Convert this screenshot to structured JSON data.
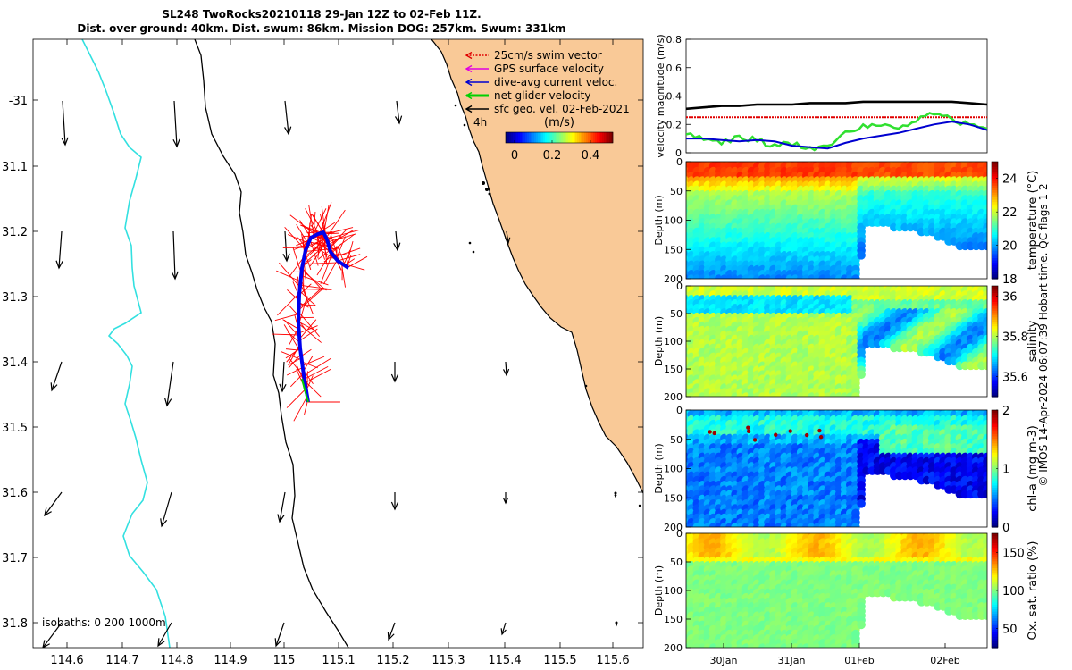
{
  "title": {
    "line1": "SL248 TwoRocks20210118 29-Jan 12Z to 02-Feb 11Z.",
    "line2": "Dist. over ground: 40km. Dist. swum: 86km. Mission DOG: 257km. Swum: 331km"
  },
  "map": {
    "x_ticks": [
      "114.6",
      "114.7",
      "114.8",
      "114.9",
      "115",
      "115.1",
      "115.2",
      "115.3",
      "115.4",
      "115.5",
      "115.6"
    ],
    "y_ticks": [
      "-31",
      "31.1",
      "31.2",
      "31.3",
      "31.4",
      "31.5",
      "31.6",
      "31.7",
      "31.8"
    ],
    "isobaths_label": "isobaths: 0   200  1000m",
    "legend": [
      {
        "label": "25cm/s swim vector",
        "color": "#e00000"
      },
      {
        "label": "GPS surface velocity",
        "color": "#e000e0"
      },
      {
        "label": "dive-avg current veloc.",
        "color": "#0000d0"
      },
      {
        "label": "net glider velocity",
        "color": "#00d000"
      },
      {
        "label": "sfc geo. vel. 02-Feb-2021",
        "color": "#000000"
      }
    ],
    "interval_label": "4h",
    "colorbar_unit": "(m/s)",
    "colorbar_ticks": [
      "0",
      "0.2",
      "0.4"
    ],
    "land_color": "#f9c997",
    "isobath_200_color": "#000000",
    "isobath_1000_color": "#33e0e0"
  },
  "chart_data": [
    {
      "type": "line",
      "title": "",
      "ylabel": "velocity magnitude (m/s)",
      "ylim": [
        0,
        0.8
      ],
      "yticks": [
        "0",
        "0.2",
        "0.4",
        "0.6",
        "0.8"
      ],
      "series": [
        {
          "name": "sfc geo. vel.",
          "color": "#000000",
          "values": [
            0.31,
            0.32,
            0.33,
            0.33,
            0.34,
            0.34,
            0.34,
            0.35,
            0.35,
            0.35,
            0.36,
            0.36,
            0.36,
            0.36,
            0.36,
            0.36,
            0.35,
            0.34
          ]
        },
        {
          "name": "25cm/s swim vector",
          "color": "#e00000",
          "values": [
            0.25,
            0.25,
            0.25,
            0.25,
            0.25,
            0.25,
            0.25,
            0.25,
            0.25,
            0.25,
            0.25,
            0.25,
            0.25,
            0.25,
            0.25,
            0.25,
            0.25,
            0.25
          ]
        },
        {
          "name": "net glider velocity",
          "color": "#30e030",
          "values": [
            0.13,
            0.09,
            0.06,
            0.12,
            0.08,
            0.06,
            0.05,
            0.04,
            0.05,
            0.15,
            0.2,
            0.19,
            0.17,
            0.22,
            0.27,
            0.24,
            0.2,
            0.17
          ]
        },
        {
          "name": "dive-avg current veloc.",
          "color": "#0000d0",
          "values": [
            0.1,
            0.1,
            0.09,
            0.08,
            0.09,
            0.08,
            0.05,
            0.04,
            0.03,
            0.07,
            0.1,
            0.12,
            0.14,
            0.17,
            0.2,
            0.22,
            0.2,
            0.16
          ]
        }
      ]
    },
    {
      "type": "heatmap",
      "ylabel": "Depth (m)",
      "colorbar_label": "temperature (°C)",
      "clim": [
        18,
        25
      ],
      "colorbar_ticks": [
        "18",
        "20",
        "22",
        "24"
      ],
      "yticks": [
        "0",
        "50",
        "100",
        "150",
        "200"
      ],
      "ylim": [
        0,
        200
      ]
    },
    {
      "type": "heatmap",
      "ylabel": "Depth (m)",
      "colorbar_label": "salinity",
      "clim": [
        35.5,
        36.05
      ],
      "colorbar_ticks": [
        "35.6",
        "35.8",
        "36"
      ],
      "yticks": [
        "0",
        "50",
        "100",
        "150",
        "200"
      ],
      "ylim": [
        0,
        200
      ]
    },
    {
      "type": "heatmap",
      "ylabel": "Depth (m)",
      "colorbar_label": "chl-a (mg m-3)",
      "clim": [
        0,
        2
      ],
      "colorbar_ticks": [
        "0",
        "1",
        "2"
      ],
      "yticks": [
        "0",
        "50",
        "100",
        "150",
        "200"
      ],
      "ylim": [
        0,
        200
      ]
    },
    {
      "type": "heatmap",
      "ylabel": "Depth (m)",
      "colorbar_label": "Ox. sat. ratio (%)",
      "clim": [
        25,
        175
      ],
      "colorbar_ticks": [
        "50",
        "100",
        "150"
      ],
      "yticks": [
        "0",
        "50",
        "100",
        "150",
        "200"
      ],
      "ylim": [
        0,
        200
      ],
      "xtick_labels": [
        "30Jan",
        "31Jan",
        "01Feb",
        "02Feb"
      ]
    }
  ],
  "credit": "© IMOS 14-Apr-2024 06:07:39 Hobart time. QC flags 1  2"
}
